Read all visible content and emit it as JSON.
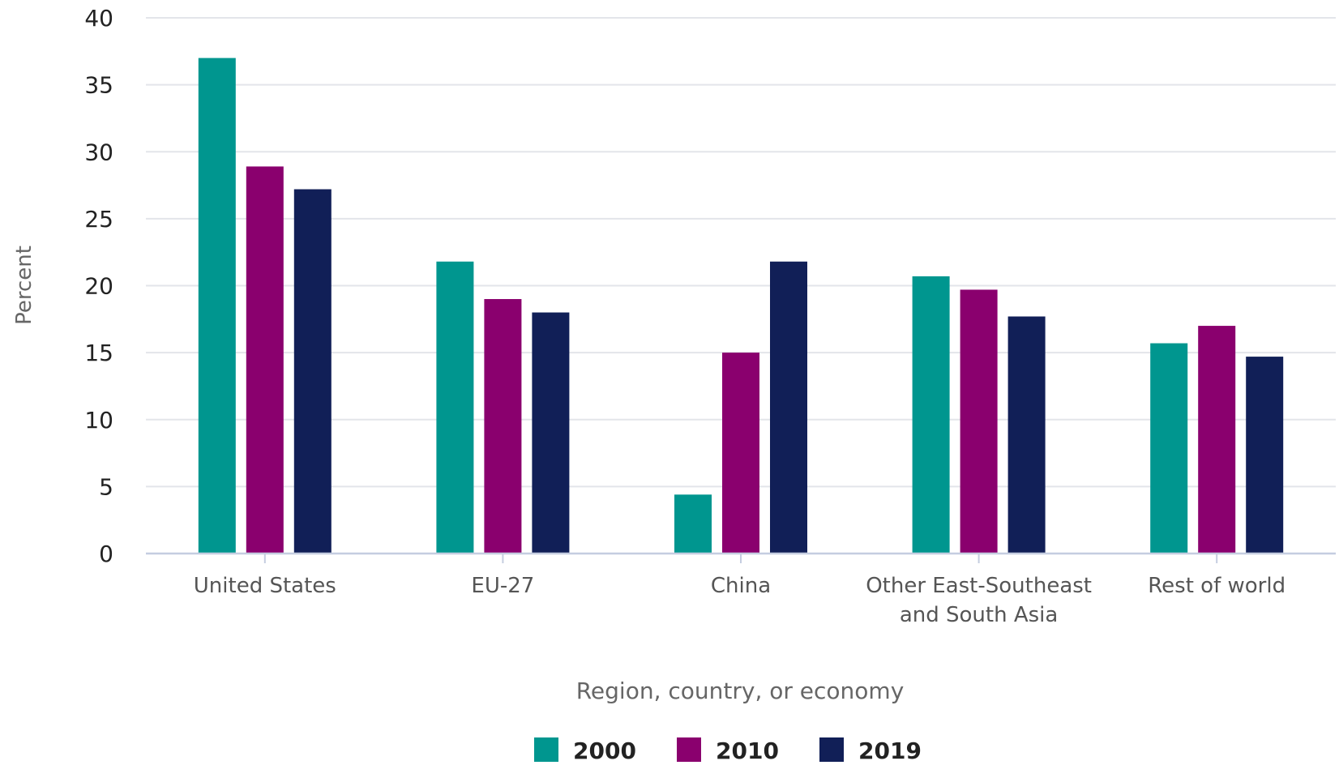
{
  "chart_data": {
    "type": "bar",
    "title": "",
    "xlabel": "Region, country, or economy",
    "ylabel": "Percent",
    "ylim": [
      0,
      40
    ],
    "yticks": [
      0,
      5,
      10,
      15,
      20,
      25,
      30,
      35,
      40
    ],
    "categories": [
      [
        "United States"
      ],
      [
        "EU-27"
      ],
      [
        "China"
      ],
      [
        "Other East-Southeast",
        "and South Asia"
      ],
      [
        "Rest of world"
      ]
    ],
    "series": [
      {
        "name": "2000",
        "color": "#00968f",
        "values": [
          37.0,
          21.8,
          4.4,
          20.7,
          15.7
        ]
      },
      {
        "name": "2010",
        "color": "#8a006e",
        "values": [
          28.9,
          19.0,
          15.0,
          19.7,
          17.0
        ]
      },
      {
        "name": "2019",
        "color": "#111f57",
        "values": [
          27.2,
          18.0,
          21.8,
          17.7,
          14.7
        ]
      }
    ],
    "grid": true,
    "legend_position": "bottom-center"
  }
}
